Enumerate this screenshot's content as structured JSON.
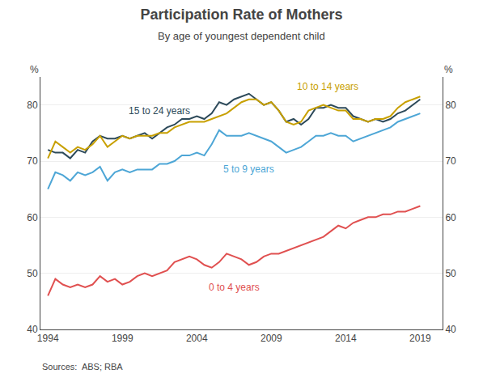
{
  "chart_data": {
    "type": "line",
    "title": "Participation Rate of Mothers",
    "subtitle": "By age of youngest dependent child",
    "ylabel": "%",
    "y2label": "%",
    "source": "Sources:  ABS; RBA",
    "xlim": [
      1993.5,
      2020.5
    ],
    "xticks": [
      1994,
      1999,
      2004,
      2009,
      2014,
      2019
    ],
    "ylim": [
      40,
      85
    ],
    "yticks": [
      40,
      50,
      60,
      70,
      80
    ],
    "y2lim": [
      40,
      85
    ],
    "y2ticks": [
      40,
      50,
      60,
      70,
      80
    ],
    "grid": true,
    "x": [
      1994,
      1994.5,
      1995,
      1995.5,
      1996,
      1996.5,
      1997,
      1997.5,
      1998,
      1998.5,
      1999,
      1999.5,
      2000,
      2000.5,
      2001,
      2001.5,
      2002,
      2002.5,
      2003,
      2003.5,
      2004,
      2004.5,
      2005,
      2005.5,
      2006,
      2006.5,
      2007,
      2007.5,
      2008,
      2008.5,
      2009,
      2009.5,
      2010,
      2010.5,
      2011,
      2011.5,
      2012,
      2012.5,
      2013,
      2013.5,
      2014,
      2014.5,
      2015,
      2015.5,
      2016,
      2016.5,
      2017,
      2017.5,
      2018,
      2018.5,
      2019
    ],
    "series": [
      {
        "name": "15 to 24 years",
        "color": "#2d4a5a",
        "values": [
          72.0,
          71.5,
          71.5,
          70.5,
          72.0,
          71.5,
          73.5,
          74.5,
          74.0,
          74.0,
          74.5,
          74.0,
          74.5,
          75.0,
          74.0,
          75.0,
          76.0,
          76.5,
          77.5,
          77.5,
          78.0,
          77.5,
          78.5,
          80.5,
          80.0,
          81.0,
          81.5,
          82.0,
          81.0,
          80.0,
          80.5,
          79.0,
          77.0,
          77.5,
          76.5,
          77.5,
          79.5,
          79.5,
          80.0,
          79.5,
          79.5,
          78.0,
          77.5,
          77.0,
          77.5,
          77.0,
          77.5,
          78.5,
          79.0,
          80.0,
          81.0
        ]
      },
      {
        "name": "10 to 14 years",
        "color": "#c8a000",
        "values": [
          70.5,
          73.5,
          72.5,
          71.5,
          72.5,
          72.0,
          73.0,
          74.5,
          72.5,
          73.5,
          74.5,
          74.0,
          74.5,
          74.5,
          74.5,
          75.0,
          75.0,
          76.0,
          76.5,
          77.0,
          77.0,
          77.0,
          77.5,
          78.0,
          78.5,
          79.5,
          80.5,
          81.0,
          81.0,
          80.0,
          80.5,
          79.0,
          77.0,
          76.5,
          77.0,
          79.0,
          79.5,
          80.0,
          79.5,
          79.0,
          79.0,
          77.5,
          77.5,
          77.0,
          77.5,
          77.5,
          78.0,
          79.5,
          80.5,
          81.0,
          81.5
        ]
      },
      {
        "name": "5 to 9 years",
        "color": "#4da6d6",
        "values": [
          65.0,
          68.0,
          67.5,
          66.5,
          68.0,
          67.5,
          68.0,
          69.0,
          66.5,
          68.0,
          68.5,
          68.0,
          68.5,
          68.5,
          68.5,
          69.5,
          69.5,
          70.0,
          71.0,
          71.0,
          71.5,
          71.0,
          73.0,
          75.5,
          74.5,
          74.5,
          74.5,
          75.0,
          74.5,
          74.0,
          73.5,
          72.5,
          71.5,
          72.0,
          72.5,
          73.5,
          74.5,
          74.5,
          75.0,
          74.5,
          74.5,
          73.5,
          74.0,
          74.5,
          75.0,
          75.5,
          76.0,
          77.0,
          77.5,
          78.0,
          78.5
        ]
      },
      {
        "name": "0 to 4 years",
        "color": "#e05050",
        "values": [
          46.0,
          49.0,
          48.0,
          47.5,
          48.0,
          47.5,
          48.0,
          49.5,
          48.5,
          49.0,
          48.0,
          48.5,
          49.5,
          50.0,
          49.5,
          50.0,
          50.5,
          52.0,
          52.5,
          53.0,
          52.5,
          51.5,
          51.0,
          52.0,
          53.5,
          53.0,
          52.5,
          51.5,
          52.0,
          53.0,
          53.5,
          53.5,
          54.0,
          54.5,
          55.0,
          55.5,
          56.0,
          56.5,
          57.5,
          58.5,
          58.0,
          59.0,
          59.5,
          60.0,
          60.0,
          60.5,
          60.5,
          61.0,
          61.0,
          61.5,
          62.0
        ]
      }
    ],
    "annotations": [
      {
        "text": "15 to 24 years",
        "x": 2001.5,
        "y": 79.0,
        "color": "#2d4a5a"
      },
      {
        "text": "10 to 14 years",
        "x": 2012.8,
        "y": 83.2,
        "color": "#c8a000"
      },
      {
        "text": "5 to 9 years",
        "x": 2007.5,
        "y": 68.5,
        "color": "#4da6d6"
      },
      {
        "text": "0 to 4 years",
        "x": 2006.5,
        "y": 47.5,
        "color": "#e05050"
      }
    ]
  }
}
